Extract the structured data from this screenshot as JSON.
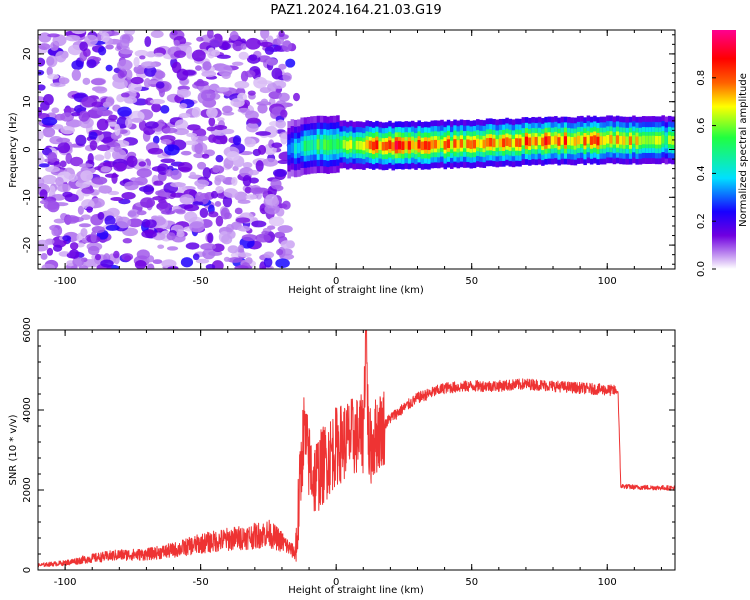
{
  "title": "PAZ1.2024.164.21.03.G19",
  "chart_data": [
    {
      "type": "heatmap",
      "xlabel": "Height of straight line (km)",
      "ylabel": "Frequency (Hz)",
      "xlim": [
        -110,
        125
      ],
      "ylim": [
        -25,
        25
      ],
      "xticks": [
        -100,
        -50,
        0,
        50,
        100
      ],
      "yticks": [
        -20,
        -10,
        0,
        10,
        20
      ],
      "colorbar": {
        "label": "Normalized spectral amplitude",
        "range": [
          0,
          1
        ],
        "ticks": [
          "0.0",
          "0.2",
          "0.4",
          "0.6",
          "0.8"
        ],
        "colormap": [
          "#ffffff",
          "#c090f0",
          "#7000e0",
          "#1800ff",
          "#00e0ff",
          "#20ff40",
          "#ffff00",
          "#ff6000",
          "#ff0000",
          "#ff0090"
        ]
      },
      "features": {
        "noise_region_x": [
          -110,
          -18
        ],
        "signal_track": [
          {
            "x": -18,
            "freq": 0,
            "amp": 0.35
          },
          {
            "x": -10,
            "freq": 1,
            "amp": 0.5
          },
          {
            "x": 0,
            "freq": 1,
            "amp": 0.55
          },
          {
            "x": 20,
            "freq": 0.8,
            "amp": 0.85
          },
          {
            "x": 50,
            "freq": 1.2,
            "amp": 0.7
          },
          {
            "x": 80,
            "freq": 1.8,
            "amp": 0.8
          },
          {
            "x": 100,
            "freq": 2,
            "amp": 0.75
          },
          {
            "x": 125,
            "freq": 2,
            "amp": 0.55
          }
        ]
      }
    },
    {
      "type": "line",
      "xlabel": "Height of straight line (km)",
      "ylabel": "SNR (10 * v/v)",
      "xlim": [
        -110,
        125
      ],
      "ylim": [
        0,
        6000
      ],
      "xticks": [
        -100,
        -50,
        0,
        50,
        100
      ],
      "yticks": [
        0,
        2000,
        4000,
        6000
      ],
      "color": "#ee3333",
      "series": [
        {
          "x": [
            -110,
            -100,
            -90,
            -80,
            -70,
            -60,
            -50,
            -40,
            -30,
            -25,
            -20,
            -15,
            -12,
            -10,
            -8,
            -5,
            0,
            5,
            10,
            11,
            12,
            15,
            20,
            25,
            30,
            40,
            50,
            60,
            70,
            80,
            90,
            100,
            103,
            104,
            105,
            110,
            125
          ],
          "y": [
            100,
            150,
            250,
            320,
            330,
            420,
            560,
            650,
            720,
            780,
            600,
            350,
            3500,
            2700,
            2300,
            2600,
            3100,
            3300,
            3400,
            6000,
            3000,
            3400,
            3800,
            4050,
            4300,
            4550,
            4600,
            4600,
            4650,
            4600,
            4550,
            4500,
            4480,
            4450,
            2100,
            2070,
            2050
          ]
        }
      ]
    }
  ]
}
